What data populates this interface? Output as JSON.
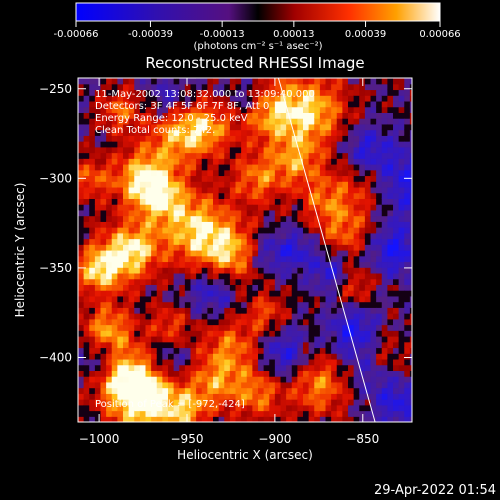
{
  "colorbar": {
    "ticks": [
      "-0.00066",
      "-0.00039",
      "-0.00013",
      "0.00013",
      "0.00039",
      "0.00066"
    ],
    "tick_values": [
      -0.00066,
      -0.00039,
      -0.00013,
      0.00013,
      0.00039,
      0.00066
    ],
    "range": [
      -0.00066,
      0.00066
    ],
    "units_label": "(photons cm⁻² s⁻¹ asec⁻²)"
  },
  "chart_data": {
    "type": "heatmap",
    "title": "Reconstructed RHESSI Image",
    "xlabel": "Heliocentric X (arcsec)",
    "ylabel": "Heliocentric Y (arcsec)",
    "xlim": [
      -1012,
      -822
    ],
    "ylim": [
      -436,
      -244
    ],
    "x_ticks": [
      -1000,
      -950,
      -900,
      -850
    ],
    "y_ticks": [
      -250,
      -300,
      -350,
      -400
    ],
    "color_range": [
      -0.00066,
      0.00066
    ],
    "limb_line": {
      "x": [
        -898,
        -843
      ],
      "y": [
        -244,
        -436
      ]
    },
    "peak_position": [
      -972,
      -424
    ],
    "annotations": [
      "11-May-2002 13:08:32.000 to 13:09:40.000",
      "Detectors: 3F 4F 5F 6F 7F 8F, Att 0",
      "Energy Range: 12.0 - 25.0 keV",
      "Clean     Total counts: 742.",
      "Position of Peak = [-972,-424]"
    ]
  },
  "timestamp": "29-Apr-2022 01:54"
}
